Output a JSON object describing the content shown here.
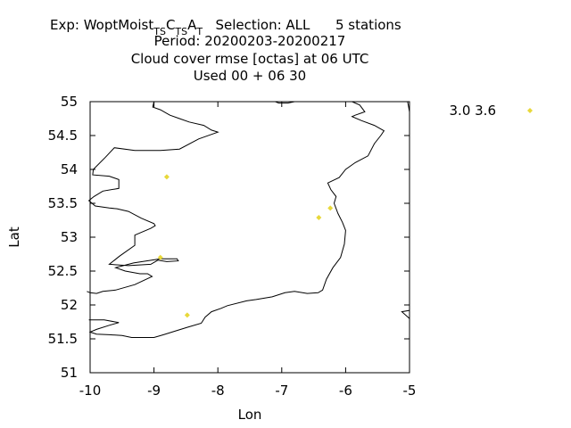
{
  "chart_data": {
    "type": "scatter",
    "title": {
      "exp_prefix": "Exp: WoptMoist",
      "exp_parts": [
        {
          "text": "T",
          "sub": true
        },
        {
          "text": "S",
          "sub": true
        },
        {
          "text": "C",
          "sub": false
        },
        {
          "text": "T",
          "sub": true
        },
        {
          "text": "S",
          "sub": true
        },
        {
          "text": "A",
          "sub": false
        },
        {
          "text": "T",
          "sub": true
        }
      ],
      "selection": "Selection: ALL",
      "stations": "5 stations",
      "line2": "Period: 20200203-20200217",
      "line3": "Cloud cover rmse [octas] at  06 UTC",
      "line4": "Used  00 + 06 30"
    },
    "xlabel": "Lon",
    "ylabel": "Lat",
    "xlim": [
      -10,
      -5
    ],
    "ylim": [
      51,
      55
    ],
    "x_ticks": [
      -10,
      -9,
      -8,
      -7,
      -6,
      -5
    ],
    "x_tick_labels": [
      "-10",
      "-9",
      "-8",
      "-7",
      "-6",
      "-5"
    ],
    "y_ticks": [
      51,
      51.5,
      52,
      52.5,
      53,
      53.5,
      54,
      54.5,
      55
    ],
    "y_tick_labels": [
      "51",
      "51.5",
      "52",
      "52.5",
      "53",
      "53.5",
      "54",
      "54.5",
      "55"
    ],
    "legend": {
      "label": "3.0 3.6",
      "placement": "outside-top-right"
    },
    "marker_color": "#e8d83a",
    "series": [
      {
        "name": "3.0 3.6",
        "points": [
          {
            "lon": -8.8,
            "lat": 53.89
          },
          {
            "lon": -6.42,
            "lat": 53.29
          },
          {
            "lon": -6.24,
            "lat": 53.43
          },
          {
            "lon": -8.9,
            "lat": 52.7
          },
          {
            "lon": -8.48,
            "lat": 51.85
          }
        ]
      }
    ],
    "coastline": [
      [
        [
          -9.0,
          55.0
        ],
        [
          -9.02,
          54.92
        ],
        [
          -8.9,
          54.88
        ],
        [
          -8.75,
          54.8
        ],
        [
          -8.6,
          54.75
        ],
        [
          -8.45,
          54.7
        ],
        [
          -8.22,
          54.65
        ],
        [
          -8.1,
          54.58
        ],
        [
          -8.0,
          54.55
        ],
        [
          -8.3,
          54.45
        ],
        [
          -8.6,
          54.3
        ],
        [
          -8.9,
          54.28
        ],
        [
          -9.3,
          54.28
        ],
        [
          -9.62,
          54.32
        ],
        [
          -9.76,
          54.18
        ],
        [
          -9.95,
          54.0
        ],
        [
          -9.96,
          53.92
        ],
        [
          -9.7,
          53.9
        ],
        [
          -9.55,
          53.85
        ],
        [
          -9.55,
          53.72
        ],
        [
          -9.8,
          53.68
        ],
        [
          -9.94,
          53.6
        ],
        [
          -10.02,
          53.54
        ],
        [
          -9.92,
          53.46
        ],
        [
          -9.7,
          53.43
        ],
        [
          -9.58,
          53.42
        ],
        [
          -9.4,
          53.38
        ],
        [
          -9.2,
          53.28
        ],
        [
          -9.0,
          53.2
        ],
        [
          -8.98,
          53.17
        ],
        [
          -9.05,
          53.13
        ],
        [
          -9.3,
          53.03
        ],
        [
          -9.3,
          52.88
        ],
        [
          -9.54,
          52.72
        ],
        [
          -9.7,
          52.6
        ],
        [
          -9.4,
          52.58
        ],
        [
          -9.05,
          52.6
        ],
        [
          -8.94,
          52.66
        ],
        [
          -8.8,
          52.64
        ],
        [
          -8.62,
          52.65
        ],
        [
          -8.64,
          52.68
        ],
        [
          -8.9,
          52.68
        ],
        [
          -9.32,
          52.62
        ],
        [
          -9.6,
          52.55
        ],
        [
          -9.45,
          52.5
        ],
        [
          -9.22,
          52.46
        ],
        [
          -9.1,
          52.46
        ],
        [
          -9.03,
          52.42
        ],
        [
          -9.3,
          52.3
        ],
        [
          -9.6,
          52.22
        ],
        [
          -9.8,
          52.2
        ],
        [
          -9.9,
          52.17
        ],
        [
          -10.0,
          52.18
        ],
        [
          -10.05,
          52.2
        ]
      ],
      [
        [
          -10.02,
          51.78
        ],
        [
          -9.78,
          51.78
        ],
        [
          -9.55,
          51.74
        ],
        [
          -9.7,
          51.7
        ],
        [
          -9.9,
          51.64
        ],
        [
          -10.0,
          51.6
        ],
        [
          -9.9,
          51.57
        ],
        [
          -9.7,
          51.56
        ],
        [
          -9.5,
          51.55
        ],
        [
          -9.35,
          51.52
        ],
        [
          -9.2,
          51.52
        ],
        [
          -9.0,
          51.52
        ],
        [
          -8.85,
          51.56
        ],
        [
          -8.65,
          51.62
        ],
        [
          -8.48,
          51.67
        ],
        [
          -8.26,
          51.73
        ],
        [
          -8.2,
          51.82
        ],
        [
          -8.1,
          51.9
        ],
        [
          -7.95,
          51.95
        ],
        [
          -7.85,
          51.99
        ],
        [
          -7.55,
          52.06
        ],
        [
          -7.4,
          52.08
        ],
        [
          -7.15,
          52.12
        ],
        [
          -6.95,
          52.18
        ],
        [
          -6.8,
          52.2
        ],
        [
          -6.6,
          52.17
        ],
        [
          -6.43,
          52.18
        ],
        [
          -6.36,
          52.22
        ],
        [
          -6.3,
          52.38
        ],
        [
          -6.2,
          52.55
        ],
        [
          -6.08,
          52.7
        ],
        [
          -6.02,
          52.9
        ],
        [
          -6.0,
          53.1
        ],
        [
          -6.05,
          53.22
        ],
        [
          -6.12,
          53.35
        ],
        [
          -6.18,
          53.5
        ],
        [
          -6.15,
          53.6
        ],
        [
          -6.23,
          53.7
        ],
        [
          -6.28,
          53.8
        ],
        [
          -6.1,
          53.88
        ],
        [
          -6.0,
          54.0
        ],
        [
          -5.85,
          54.1
        ],
        [
          -5.65,
          54.2
        ],
        [
          -5.55,
          54.38
        ],
        [
          -5.45,
          54.5
        ],
        [
          -5.4,
          54.57
        ],
        [
          -5.55,
          54.65
        ],
        [
          -5.75,
          54.72
        ],
        [
          -5.9,
          54.78
        ],
        [
          -5.85,
          54.8
        ],
        [
          -5.7,
          54.85
        ],
        [
          -5.78,
          54.95
        ],
        [
          -5.9,
          55.0
        ]
      ],
      [
        [
          -7.1,
          55.0
        ],
        [
          -7.05,
          54.98
        ],
        [
          -6.9,
          54.98
        ],
        [
          -6.8,
          55.0
        ]
      ],
      [
        [
          -5.03,
          55.0
        ],
        [
          -5.0,
          54.85
        ]
      ],
      [
        [
          -5.0,
          51.92
        ],
        [
          -5.12,
          51.9
        ],
        [
          -5.0,
          51.8
        ]
      ]
    ]
  }
}
